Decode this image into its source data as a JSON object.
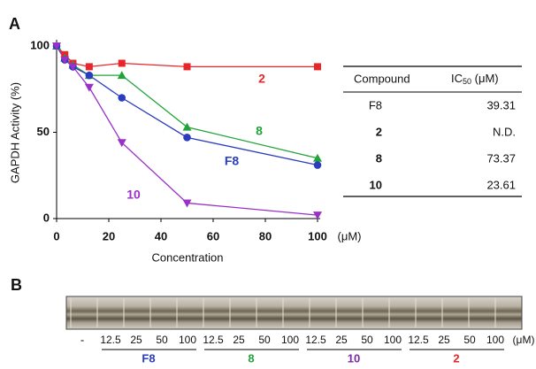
{
  "panel_a": "A",
  "panel_b": "B",
  "chart_data": {
    "type": "line",
    "ylabel": "GAPDH Activity (%)",
    "xlabel": "Concentration",
    "x_unit": "(μM)",
    "x": [
      0,
      3.125,
      6.25,
      12.5,
      25,
      50,
      100
    ],
    "xlim": [
      0,
      100
    ],
    "xticks": [
      0,
      20,
      40,
      60,
      80,
      100
    ],
    "ylim": [
      0,
      100
    ],
    "yticks": [
      0,
      50,
      100
    ],
    "series": [
      {
        "name": "2",
        "color": "#e8262a",
        "marker": "square",
        "values": [
          100,
          95,
          90,
          88,
          90,
          88,
          88
        ]
      },
      {
        "name": "8",
        "color": "#22a33a",
        "marker": "triangle-up",
        "values": [
          100,
          93,
          89,
          83,
          83,
          53,
          35
        ]
      },
      {
        "name": "F8",
        "color": "#2a3cc0",
        "marker": "circle",
        "values": [
          100,
          92,
          88,
          83,
          70,
          47,
          31
        ]
      },
      {
        "name": "10",
        "color": "#9b30c8",
        "marker": "triangle-down",
        "values": [
          100,
          92,
          88,
          76,
          44,
          9,
          2
        ]
      }
    ]
  },
  "table": {
    "header": {
      "compound": "Compound",
      "ic_text": "IC",
      "ic_sub": "50",
      "ic_unit": " (μM)"
    },
    "rows": [
      [
        "F8",
        "39.31"
      ],
      [
        "2",
        "N.D."
      ],
      [
        "8",
        "73.37"
      ],
      [
        "10",
        "23.61"
      ]
    ],
    "bold_rows": [
      false,
      true,
      true,
      true
    ]
  },
  "gel": {
    "control": "-",
    "unit": "(μM)",
    "groups": [
      {
        "name": "F8",
        "color": "#2a3cc0",
        "lanes": [
          "12.5",
          "25",
          "50",
          "100"
        ]
      },
      {
        "name": "8",
        "color": "#22a33a",
        "lanes": [
          "12.5",
          "25",
          "50",
          "100"
        ]
      },
      {
        "name": "10",
        "color": "#7a2aa0",
        "lanes": [
          "12.5",
          "25",
          "50",
          "100"
        ]
      },
      {
        "name": "2",
        "color": "#e8262a",
        "lanes": [
          "12.5",
          "25",
          "50",
          "100"
        ]
      }
    ]
  }
}
